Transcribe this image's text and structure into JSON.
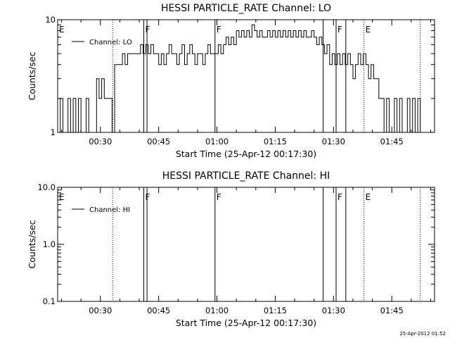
{
  "chart_data": [
    {
      "type": "line",
      "title": "HESSI PARTICLE_RATE Channel: LO",
      "xlabel": "Start Time (25-Apr-12 00:17:30)",
      "ylabel": "Counts/sec",
      "y_scale": "log",
      "ylim": [
        1,
        10
      ],
      "xlim": [
        "00:19:00",
        "01:56:00"
      ],
      "x_ticks": [
        "00:30",
        "00:45",
        "01:00",
        "01:15",
        "01:30",
        "01:45"
      ],
      "y_ticks": [
        "1",
        "10"
      ],
      "legend": {
        "position": "top-left",
        "label": "Channel: LO"
      },
      "series": [
        {
          "name": "Channel: LO",
          "x": [
            "00:19:00",
            "00:19:40",
            "00:20:20",
            "00:21:00",
            "00:21:40",
            "00:22:20",
            "00:23:00",
            "00:23:40",
            "00:24:20",
            "00:25:00",
            "00:25:40",
            "00:26:20",
            "00:27:00",
            "00:27:40",
            "00:28:20",
            "00:29:00",
            "00:29:40",
            "00:30:20",
            "00:31:00",
            "00:31:40",
            "00:32:20",
            "00:33:00",
            "00:33:40",
            "00:34:20",
            "00:35:00",
            "00:35:40",
            "00:36:20",
            "00:37:00",
            "00:37:40",
            "00:38:20",
            "00:39:00",
            "00:39:40",
            "00:40:20",
            "00:41:00",
            "00:41:40",
            "00:42:20",
            "00:43:00",
            "00:43:40",
            "00:44:20",
            "00:45:00",
            "00:45:40",
            "00:46:20",
            "00:47:00",
            "00:47:40",
            "00:48:20",
            "00:49:00",
            "00:49:40",
            "00:50:20",
            "00:51:00",
            "00:51:40",
            "00:52:20",
            "00:53:00",
            "00:53:40",
            "00:54:20",
            "00:55:00",
            "00:55:40",
            "00:56:20",
            "00:57:00",
            "00:57:40",
            "00:58:20",
            "00:59:00",
            "00:59:40",
            "01:00:20",
            "01:01:00",
            "01:01:40",
            "01:02:20",
            "01:03:00",
            "01:03:40",
            "01:04:20",
            "01:05:00",
            "01:05:40",
            "01:06:20",
            "01:07:00",
            "01:07:40",
            "01:08:20",
            "01:09:00",
            "01:09:40",
            "01:10:20",
            "01:11:00",
            "01:11:40",
            "01:12:20",
            "01:13:00",
            "01:13:40",
            "01:14:20",
            "01:15:00",
            "01:15:40",
            "01:16:20",
            "01:17:00",
            "01:17:40",
            "01:18:20",
            "01:19:00",
            "01:19:40",
            "01:20:20",
            "01:21:00",
            "01:21:40",
            "01:22:20",
            "01:23:00",
            "01:23:40",
            "01:24:20",
            "01:25:00",
            "01:25:40",
            "01:26:20",
            "01:27:00",
            "01:27:40",
            "01:28:20",
            "01:29:00",
            "01:29:40",
            "01:30:20",
            "01:31:00",
            "01:31:40",
            "01:32:20",
            "01:33:00",
            "01:33:40",
            "01:34:20",
            "01:35:00",
            "01:35:40",
            "01:36:20",
            "01:37:00",
            "01:37:40",
            "01:38:20",
            "01:39:00",
            "01:39:40",
            "01:40:20",
            "01:41:00",
            "01:41:40",
            "01:42:20",
            "01:43:00",
            "01:43:40",
            "01:44:20",
            "01:45:00",
            "01:45:40",
            "01:46:20",
            "01:47:00",
            "01:47:40",
            "01:48:20",
            "01:49:00",
            "01:49:40",
            "01:50:20",
            "01:51:00",
            "01:51:40",
            "01:52:20"
          ],
          "values": [
            1,
            2,
            1,
            1,
            2,
            1,
            2,
            1,
            2,
            1,
            1,
            2,
            1,
            1,
            1,
            3,
            2,
            3,
            2,
            2,
            2,
            1,
            4,
            4,
            4,
            5,
            4,
            5,
            5,
            5,
            5,
            5,
            6,
            5,
            6,
            5,
            6,
            5,
            5,
            4,
            5,
            4,
            5,
            6,
            5,
            5,
            4,
            5,
            6,
            4,
            5,
            6,
            5,
            4,
            5,
            5,
            4,
            5,
            6,
            5,
            5,
            5,
            6,
            5,
            6,
            7,
            6,
            7,
            6,
            8,
            7,
            8,
            7,
            8,
            7,
            9,
            8,
            7,
            8,
            7,
            7,
            8,
            7,
            8,
            7,
            8,
            7,
            8,
            7,
            8,
            7,
            8,
            7,
            8,
            7,
            8,
            7,
            7,
            8,
            7,
            6,
            7,
            6,
            5,
            6,
            4,
            5,
            4,
            5,
            4,
            5,
            4,
            5,
            4,
            3,
            4,
            5,
            4,
            5,
            4,
            3,
            4,
            3,
            3,
            2,
            2,
            1,
            2,
            1,
            1,
            2,
            1,
            2,
            1,
            1,
            2,
            1,
            2,
            1,
            2,
            1
          ]
        }
      ],
      "annotations": [
        {
          "time": "00:19:00",
          "label": "E",
          "style": "dotted"
        },
        {
          "time": "00:33:10",
          "label": "",
          "style": "dotted"
        },
        {
          "time": "00:41:10",
          "label": "F",
          "style": "solid"
        },
        {
          "time": "00:42:00",
          "label": "",
          "style": "solid"
        },
        {
          "time": "00:59:30",
          "label": "F",
          "style": "solid"
        },
        {
          "time": "01:27:20",
          "label": "",
          "style": "solid"
        },
        {
          "time": "01:30:40",
          "label": "F",
          "style": "solid"
        },
        {
          "time": "01:33:10",
          "label": "",
          "style": "solid"
        },
        {
          "time": "01:37:50",
          "label": "E",
          "style": "dotted"
        },
        {
          "time": "01:52:20",
          "label": "",
          "style": "dotted"
        }
      ]
    },
    {
      "type": "line",
      "title": "HESSI PARTICLE_RATE Channel: HI",
      "xlabel": "Start Time (25-Apr-12 00:17:30)",
      "ylabel": "Counts/sec",
      "y_scale": "log",
      "ylim": [
        0.1,
        10
      ],
      "xlim": [
        "00:19:00",
        "01:56:00"
      ],
      "x_ticks": [
        "00:30",
        "00:45",
        "01:00",
        "01:15",
        "01:30",
        "01:45"
      ],
      "y_ticks": [
        "0.1",
        "1.0",
        "10.0"
      ],
      "legend": {
        "position": "top-left",
        "label": "Channel: HI"
      },
      "series": [
        {
          "name": "Channel: HI",
          "x": [],
          "values": []
        }
      ],
      "annotations": [
        {
          "time": "00:19:00",
          "label": "E",
          "style": "dotted"
        },
        {
          "time": "00:33:10",
          "label": "",
          "style": "dotted"
        },
        {
          "time": "00:41:10",
          "label": "F",
          "style": "solid"
        },
        {
          "time": "00:42:00",
          "label": "",
          "style": "solid"
        },
        {
          "time": "00:59:30",
          "label": "F",
          "style": "solid"
        },
        {
          "time": "01:27:20",
          "label": "",
          "style": "solid"
        },
        {
          "time": "01:30:40",
          "label": "F",
          "style": "solid"
        },
        {
          "time": "01:33:10",
          "label": "",
          "style": "solid"
        },
        {
          "time": "01:37:50",
          "label": "E",
          "style": "dotted"
        },
        {
          "time": "01:52:20",
          "label": "",
          "style": "dotted"
        }
      ]
    }
  ],
  "footer": {
    "timestamp": "25-Apr-2012 01:52"
  }
}
